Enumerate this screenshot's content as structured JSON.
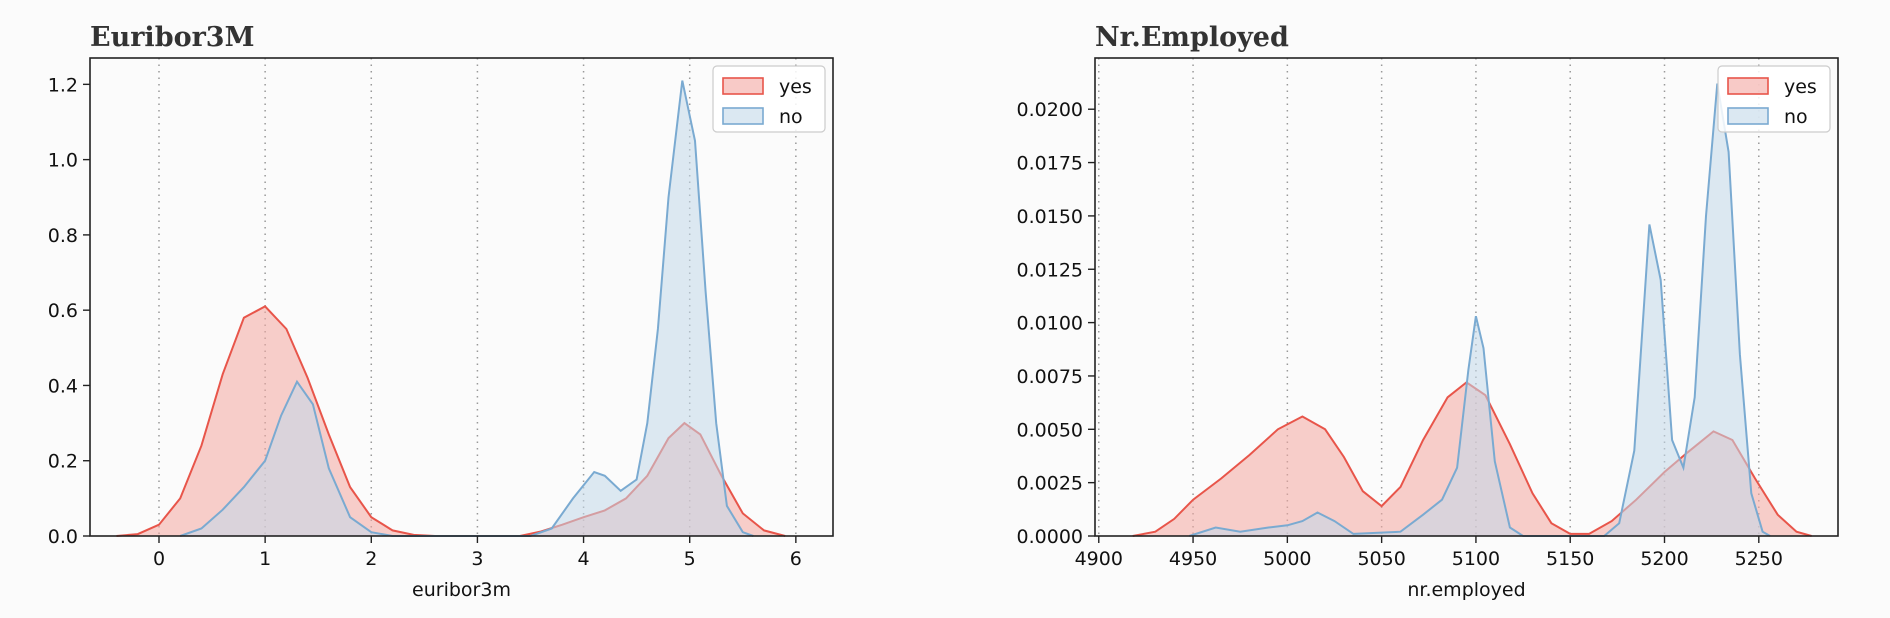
{
  "chart_data": [
    {
      "type": "area",
      "title": "Euribor3M",
      "xlabel": "euribor3m",
      "ylabel": "",
      "xlim": [
        -0.65,
        6.35
      ],
      "ylim": [
        0,
        1.27
      ],
      "xticks": [
        0,
        1,
        2,
        3,
        4,
        5,
        6
      ],
      "yticks": [
        0.0,
        0.2,
        0.4,
        0.6,
        0.8,
        1.0,
        1.2
      ],
      "ytick_decimals": 1,
      "grid": "vertical dotted",
      "legend_placement": "top-right",
      "series": [
        {
          "name": "yes",
          "color": "#e8554a",
          "fill": "#f4a7a1",
          "points": [
            [
              -0.4,
              0.0
            ],
            [
              -0.2,
              0.005
            ],
            [
              0.0,
              0.03
            ],
            [
              0.2,
              0.1
            ],
            [
              0.4,
              0.24
            ],
            [
              0.6,
              0.43
            ],
            [
              0.8,
              0.58
            ],
            [
              1.0,
              0.61
            ],
            [
              1.2,
              0.55
            ],
            [
              1.4,
              0.42
            ],
            [
              1.6,
              0.27
            ],
            [
              1.8,
              0.13
            ],
            [
              2.0,
              0.05
            ],
            [
              2.2,
              0.015
            ],
            [
              2.4,
              0.003
            ],
            [
              2.6,
              0.0
            ],
            [
              3.4,
              0.0
            ],
            [
              3.6,
              0.012
            ],
            [
              3.8,
              0.03
            ],
            [
              4.0,
              0.05
            ],
            [
              4.2,
              0.068
            ],
            [
              4.4,
              0.1
            ],
            [
              4.6,
              0.16
            ],
            [
              4.8,
              0.26
            ],
            [
              4.95,
              0.3
            ],
            [
              5.1,
              0.27
            ],
            [
              5.3,
              0.16
            ],
            [
              5.5,
              0.06
            ],
            [
              5.7,
              0.015
            ],
            [
              5.9,
              0.0
            ]
          ]
        },
        {
          "name": "no",
          "color": "#7aaad1",
          "fill": "#c3d8ea",
          "points": [
            [
              0.2,
              0.0
            ],
            [
              0.4,
              0.02
            ],
            [
              0.6,
              0.07
            ],
            [
              0.8,
              0.13
            ],
            [
              1.0,
              0.2
            ],
            [
              1.15,
              0.32
            ],
            [
              1.3,
              0.41
            ],
            [
              1.45,
              0.35
            ],
            [
              1.6,
              0.18
            ],
            [
              1.8,
              0.05
            ],
            [
              2.0,
              0.01
            ],
            [
              2.2,
              0.0
            ],
            [
              3.5,
              0.0
            ],
            [
              3.7,
              0.02
            ],
            [
              3.9,
              0.1
            ],
            [
              4.1,
              0.17
            ],
            [
              4.2,
              0.16
            ],
            [
              4.35,
              0.12
            ],
            [
              4.5,
              0.15
            ],
            [
              4.6,
              0.3
            ],
            [
              4.7,
              0.55
            ],
            [
              4.8,
              0.9
            ],
            [
              4.93,
              1.21
            ],
            [
              5.05,
              1.05
            ],
            [
              5.15,
              0.65
            ],
            [
              5.25,
              0.3
            ],
            [
              5.35,
              0.08
            ],
            [
              5.5,
              0.01
            ],
            [
              5.6,
              0.0
            ]
          ]
        }
      ]
    },
    {
      "type": "area",
      "title": "Nr.Employed",
      "xlabel": "nr.employed",
      "ylabel": "",
      "xlim": [
        4898,
        5292
      ],
      "ylim": [
        0,
        0.0224
      ],
      "xticks": [
        4900,
        4950,
        5000,
        5050,
        5100,
        5150,
        5200,
        5250
      ],
      "yticks": [
        0.0,
        0.0025,
        0.005,
        0.0075,
        0.01,
        0.0125,
        0.015,
        0.0175,
        0.02
      ],
      "ytick_decimals": 4,
      "grid": "vertical dotted",
      "legend_placement": "top-right",
      "series": [
        {
          "name": "yes",
          "color": "#e8554a",
          "fill": "#f4a7a1",
          "points": [
            [
              4918,
              0.0
            ],
            [
              4930,
              0.0002
            ],
            [
              4940,
              0.0008
            ],
            [
              4950,
              0.0017
            ],
            [
              4965,
              0.0027
            ],
            [
              4980,
              0.0038
            ],
            [
              4995,
              0.005
            ],
            [
              5008,
              0.0056
            ],
            [
              5020,
              0.005
            ],
            [
              5030,
              0.0037
            ],
            [
              5040,
              0.0021
            ],
            [
              5050,
              0.0014
            ],
            [
              5060,
              0.0023
            ],
            [
              5072,
              0.0045
            ],
            [
              5085,
              0.0065
            ],
            [
              5095,
              0.0072
            ],
            [
              5105,
              0.0066
            ],
            [
              5118,
              0.0043
            ],
            [
              5130,
              0.002
            ],
            [
              5140,
              0.0006
            ],
            [
              5150,
              0.0001
            ],
            [
              5160,
              0.0001
            ],
            [
              5172,
              0.0007
            ],
            [
              5185,
              0.0017
            ],
            [
              5200,
              0.003
            ],
            [
              5212,
              0.0039
            ],
            [
              5226,
              0.0049
            ],
            [
              5236,
              0.0045
            ],
            [
              5248,
              0.0027
            ],
            [
              5260,
              0.001
            ],
            [
              5270,
              0.0002
            ],
            [
              5278,
              0.0
            ]
          ]
        },
        {
          "name": "no",
          "color": "#7aaad1",
          "fill": "#c3d8ea",
          "points": [
            [
              4948,
              0.0
            ],
            [
              4962,
              0.0004
            ],
            [
              4975,
              0.0002
            ],
            [
              4990,
              0.0004
            ],
            [
              5000,
              0.0005
            ],
            [
              5008,
              0.0007
            ],
            [
              5016,
              0.0011
            ],
            [
              5025,
              0.0007
            ],
            [
              5035,
              0.0001
            ],
            [
              5060,
              0.0002
            ],
            [
              5072,
              0.001
            ],
            [
              5082,
              0.0017
            ],
            [
              5090,
              0.0032
            ],
            [
              5096,
              0.0078
            ],
            [
              5100,
              0.0103
            ],
            [
              5104,
              0.0088
            ],
            [
              5110,
              0.0035
            ],
            [
              5118,
              0.0004
            ],
            [
              5125,
              0.0
            ],
            [
              5168,
              0.0
            ],
            [
              5176,
              0.0006
            ],
            [
              5184,
              0.004
            ],
            [
              5192,
              0.0146
            ],
            [
              5198,
              0.012
            ],
            [
              5204,
              0.0045
            ],
            [
              5210,
              0.0032
            ],
            [
              5216,
              0.0065
            ],
            [
              5222,
              0.015
            ],
            [
              5228,
              0.0212
            ],
            [
              5234,
              0.018
            ],
            [
              5240,
              0.0085
            ],
            [
              5246,
              0.002
            ],
            [
              5252,
              0.0002
            ],
            [
              5256,
              0.0
            ]
          ]
        }
      ]
    }
  ]
}
